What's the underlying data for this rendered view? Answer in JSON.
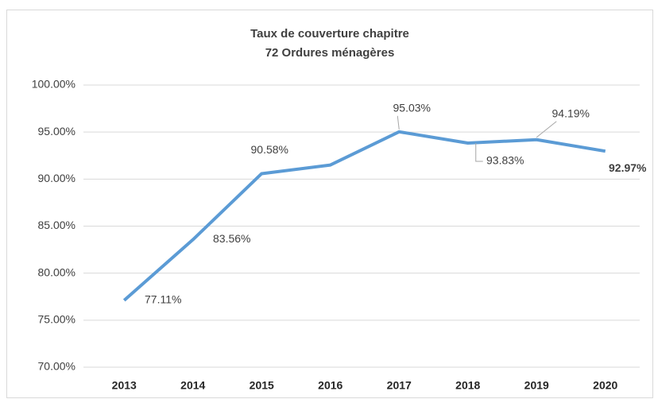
{
  "chart_data": {
    "type": "line",
    "title": [
      "Taux de couverture chapitre",
      "72 Ordures ménagères"
    ],
    "categories": [
      "2013",
      "2014",
      "2015",
      "2016",
      "2017",
      "2018",
      "2019",
      "2020"
    ],
    "series": [
      {
        "name": "Taux de couverture",
        "color": "#5b9bd5",
        "values": [
          77.11,
          83.56,
          90.58,
          91.5,
          95.03,
          93.83,
          94.19,
          92.97
        ],
        "value_labels": [
          "77.11%",
          "83.56%",
          "90.58%",
          null,
          "95.03%",
          "93.83%",
          "94.19%",
          "92.97%"
        ]
      }
    ],
    "ylim": [
      70,
      100
    ],
    "yticks": [
      {
        "value": 70,
        "label": "70.00%"
      },
      {
        "value": 75,
        "label": "75.00%"
      },
      {
        "value": 80,
        "label": "80.00%"
      },
      {
        "value": 85,
        "label": "85.00%"
      },
      {
        "value": 90,
        "label": "90.00%"
      },
      {
        "value": 95,
        "label": "95.00%"
      },
      {
        "value": 100,
        "label": "100.00%"
      }
    ],
    "grid": true
  }
}
